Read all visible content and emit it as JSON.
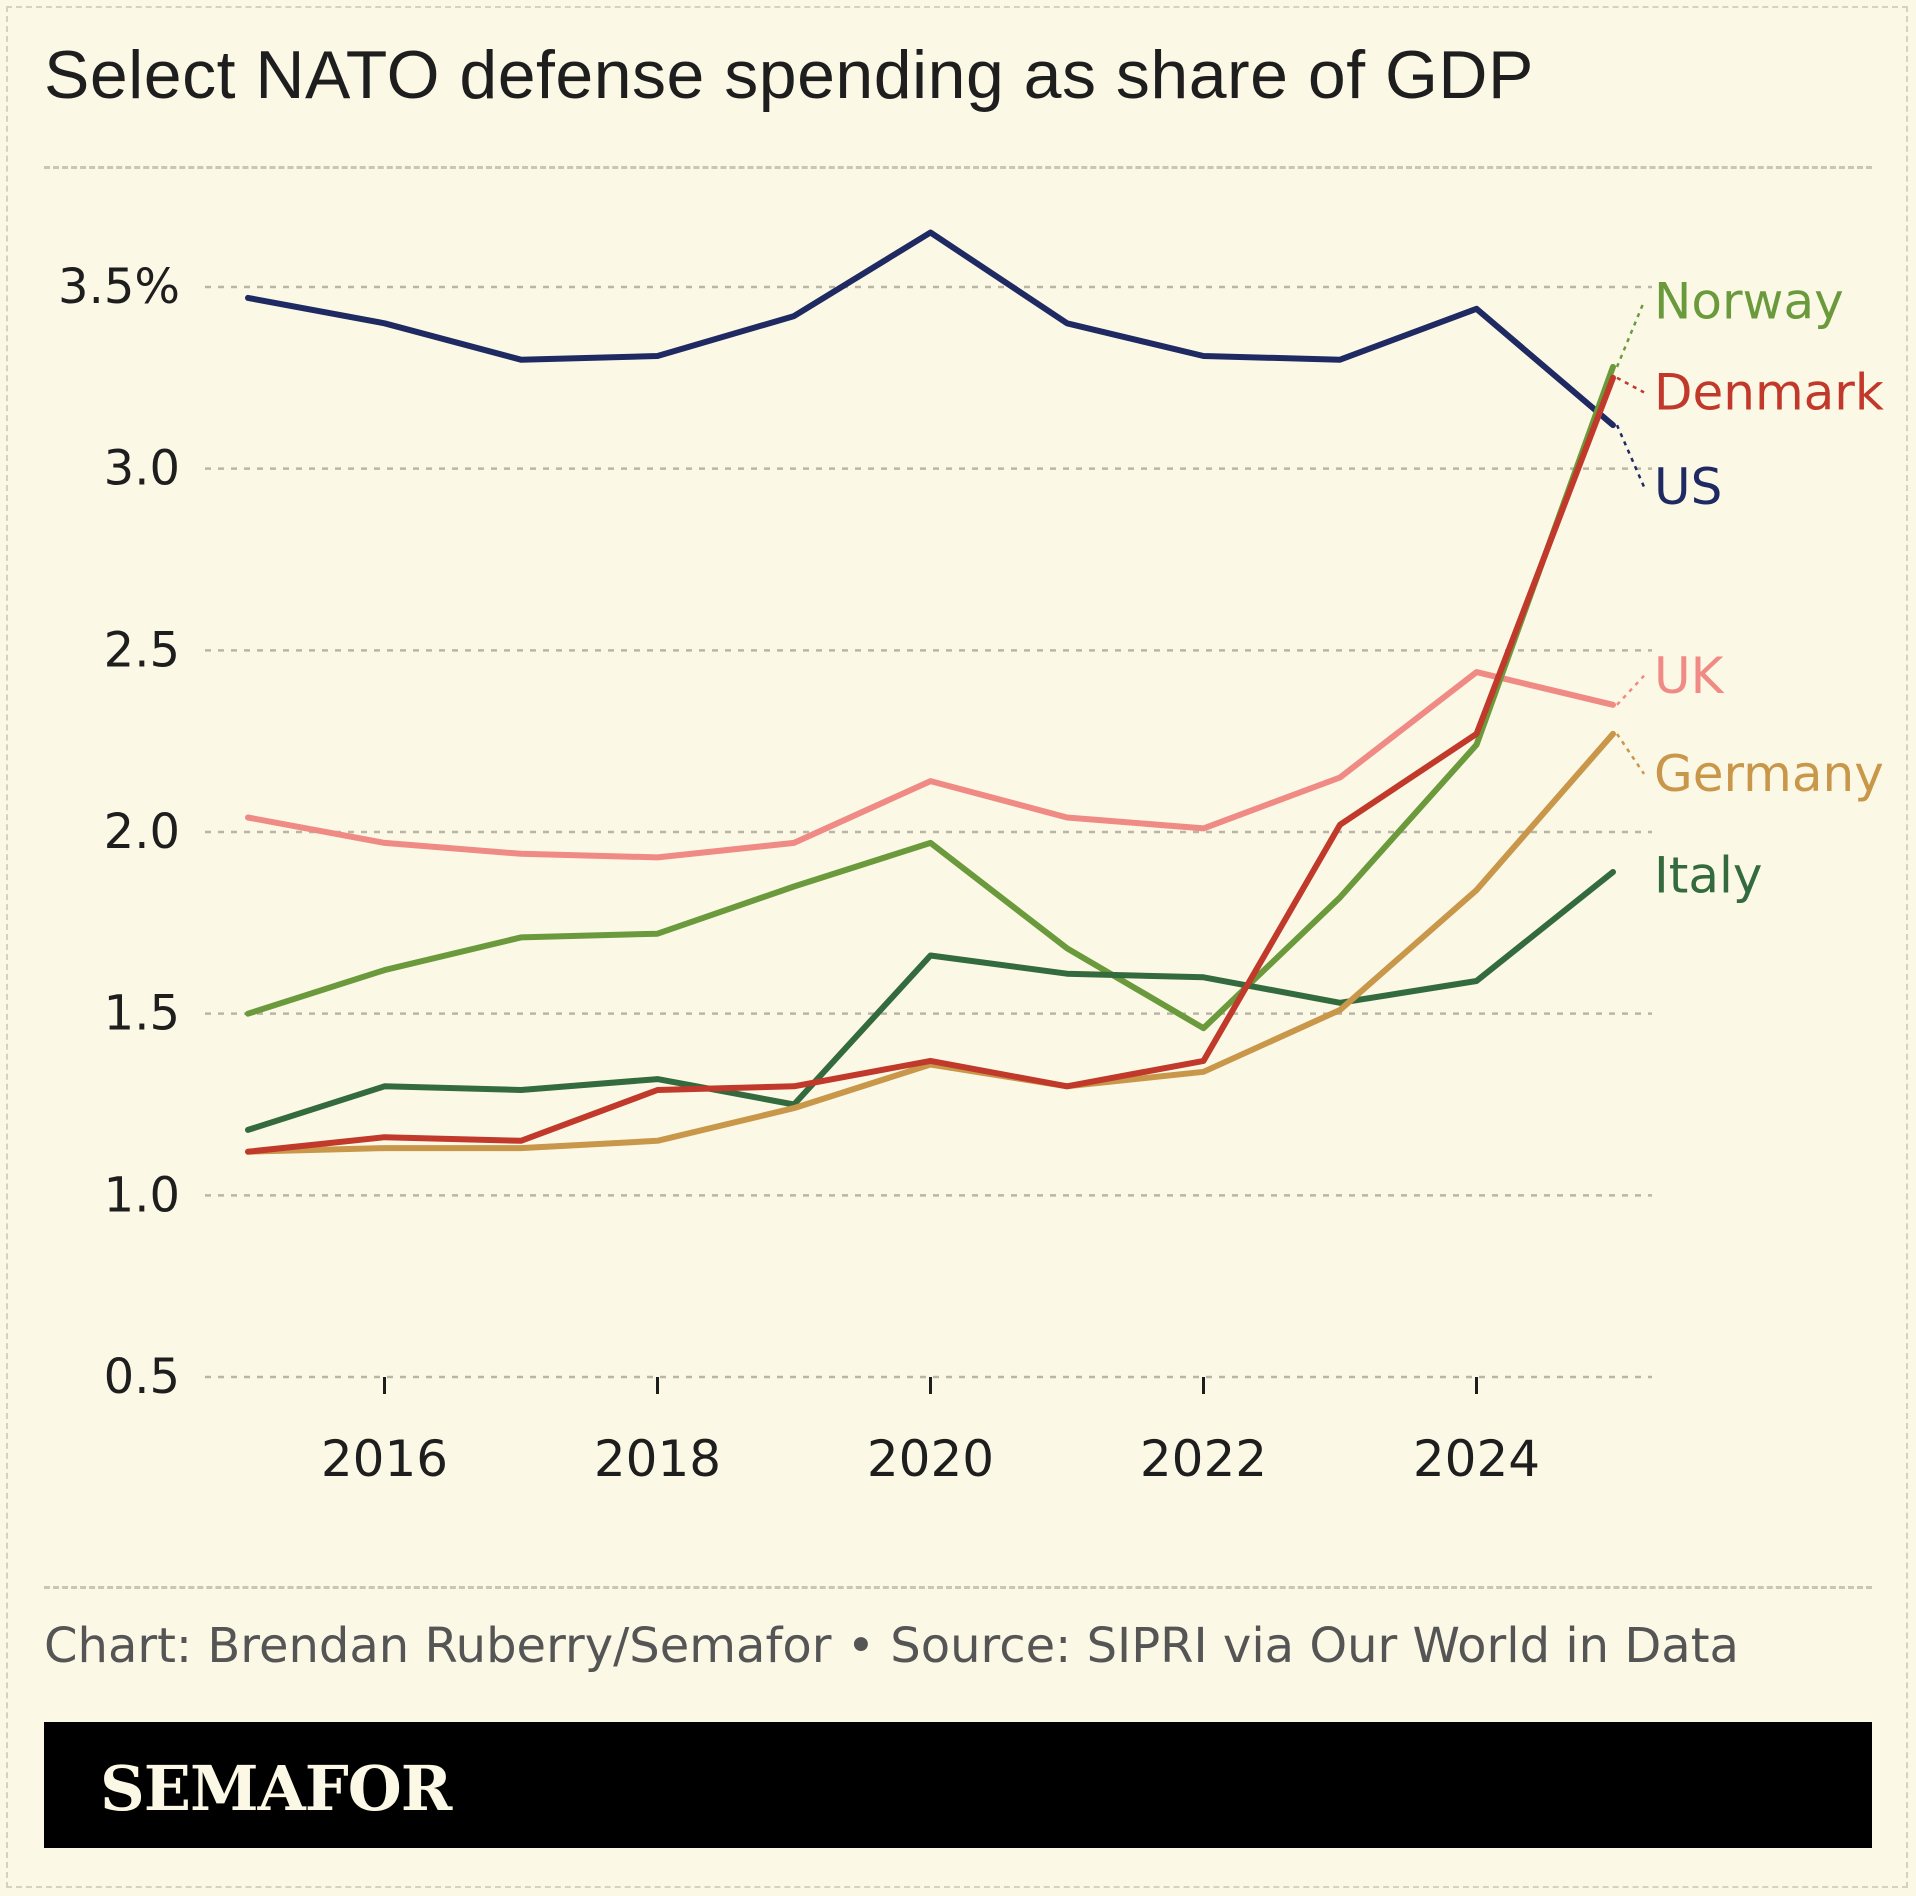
{
  "title": "Select NATO defense spending as share of GDP",
  "source": "Chart: Brendan Ruberry/Semafor • Source: SIPRI via Our World in Data",
  "brand": "SEMAFOR",
  "chart_data": {
    "type": "line",
    "title": "Select NATO defense spending as share of GDP",
    "xlabel": "",
    "ylabel": "",
    "x": [
      2015,
      2016,
      2017,
      2018,
      2019,
      2020,
      2021,
      2022,
      2023,
      2024,
      2025
    ],
    "xlim": [
      2014.75,
      2026.3
    ],
    "ylim": [
      0.5,
      3.8
    ],
    "y_ticks": [
      0.5,
      1.0,
      1.5,
      2.0,
      2.5,
      3.0,
      3.5
    ],
    "y_tick_labels": [
      "0.5",
      "1.0",
      "1.5",
      "2.0",
      "2.5",
      "3.0",
      "3.5%"
    ],
    "x_ticks": [
      2016,
      2018,
      2020,
      2022,
      2024
    ],
    "x_tick_labels": [
      "2016",
      "2018",
      "2020",
      "2022",
      "2024"
    ],
    "grid": "horizontal dashed",
    "legend": "direct labels at right",
    "series": [
      {
        "name": "US",
        "color": "#1f2a63",
        "label_y": 2.95,
        "values": [
          3.47,
          3.4,
          3.3,
          3.31,
          3.42,
          3.65,
          3.4,
          3.31,
          3.3,
          3.44,
          3.12
        ]
      },
      {
        "name": "UK",
        "color": "#f08a84",
        "label_y": 2.43,
        "values": [
          2.04,
          1.97,
          1.94,
          1.93,
          1.97,
          2.14,
          2.04,
          2.01,
          2.15,
          2.44,
          2.35
        ]
      },
      {
        "name": "Norway",
        "color": "#6b9a3c",
        "label_y": 3.46,
        "values": [
          1.5,
          1.62,
          1.71,
          1.72,
          1.85,
          1.97,
          1.68,
          1.46,
          1.82,
          2.24,
          3.28
        ]
      },
      {
        "name": "Italy",
        "color": "#336b3e",
        "label_y": 1.88,
        "values": [
          1.18,
          1.3,
          1.29,
          1.32,
          1.25,
          1.66,
          1.61,
          1.6,
          1.53,
          1.59,
          1.89
        ]
      },
      {
        "name": "Germany",
        "color": "#c9974a",
        "label_y": 2.16,
        "values": [
          1.12,
          1.13,
          1.13,
          1.15,
          1.24,
          1.36,
          1.3,
          1.34,
          1.51,
          1.84,
          2.27
        ]
      },
      {
        "name": "Denmark",
        "color": "#c0392b",
        "label_y": 3.21,
        "values": [
          1.12,
          1.16,
          1.15,
          1.29,
          1.3,
          1.37,
          1.3,
          1.37,
          2.02,
          2.27,
          3.25
        ]
      }
    ]
  }
}
